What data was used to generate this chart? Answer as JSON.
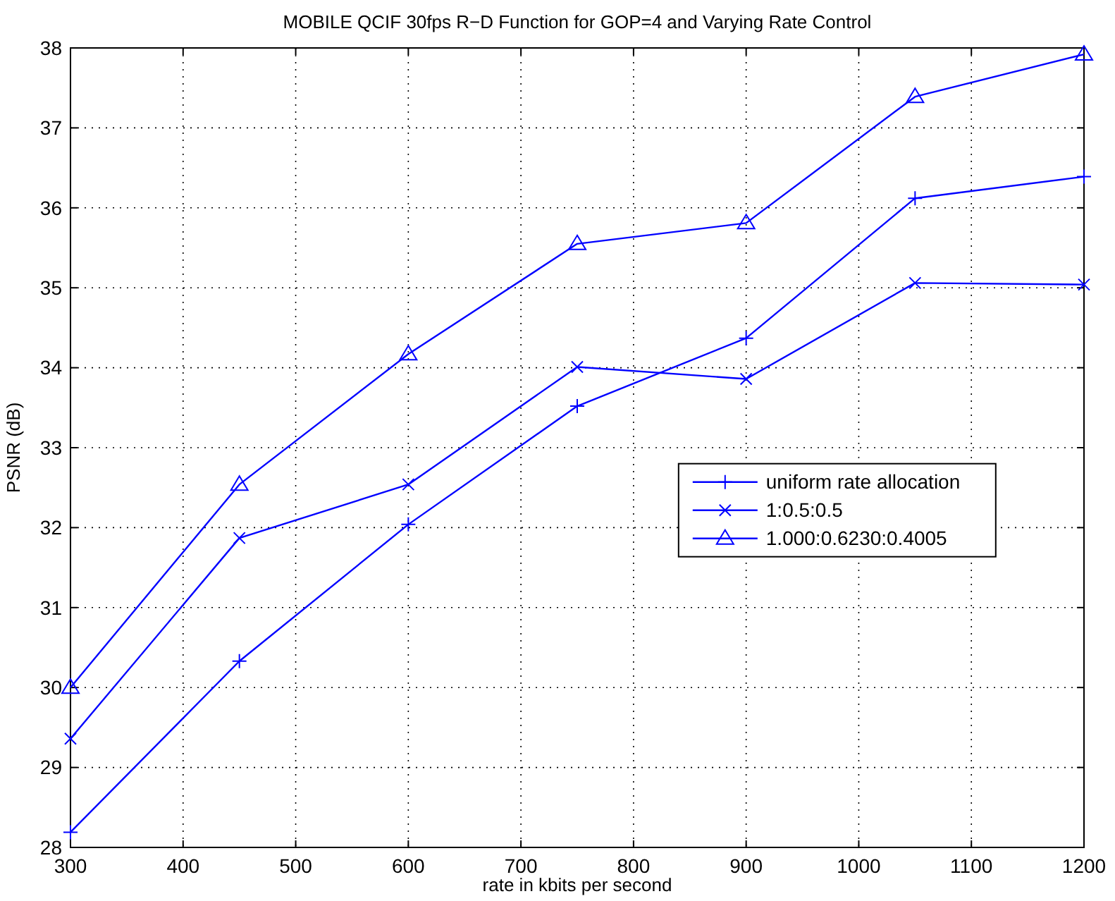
{
  "chart_data": {
    "type": "line",
    "title": "MOBILE QCIF 30fps R−D Function for GOP=4 and Varying Rate Control",
    "xlabel": "rate in kbits per second",
    "ylabel": "PSNR (dB)",
    "x": [
      300,
      450,
      600,
      750,
      900,
      1050,
      1200
    ],
    "series": [
      {
        "name": "uniform rate allocation",
        "color": "#0000ff",
        "marker": "cross",
        "values": [
          28.19,
          30.33,
          32.04,
          33.52,
          34.37,
          36.12,
          36.39
        ]
      },
      {
        "name": "1:0.5:0.5",
        "color": "#0000ff",
        "marker": "x",
        "values": [
          29.36,
          31.87,
          32.54,
          34.01,
          33.86,
          35.06,
          35.04
        ]
      },
      {
        "name": "1.000:0.6230:0.4005",
        "color": "#0000ff",
        "marker": "triangle",
        "values": [
          30.0,
          32.54,
          34.17,
          35.55,
          35.81,
          37.39,
          37.92
        ]
      }
    ],
    "xlim": [
      300,
      1200
    ],
    "xticks": [
      300,
      400,
      500,
      600,
      700,
      800,
      900,
      1000,
      1100,
      1200
    ],
    "ylim": [
      28,
      38
    ],
    "yticks": [
      28,
      29,
      30,
      31,
      32,
      33,
      34,
      35,
      36,
      37,
      38
    ],
    "grid": true,
    "legend": "right",
    "line_style": "solid"
  }
}
